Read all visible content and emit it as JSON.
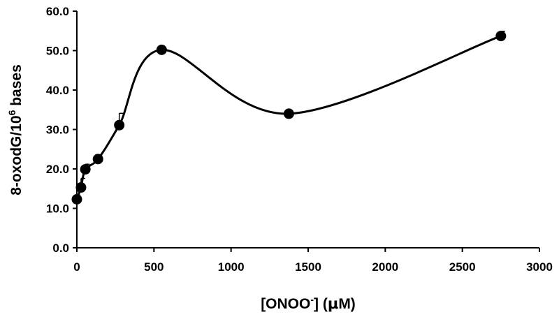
{
  "chart_data": {
    "type": "scatter",
    "title": "",
    "xlabel_parts": {
      "before": "[ONOO",
      "sup": "-",
      "after": "] (",
      "mu": "μ",
      "unit": "M)"
    },
    "ylabel_parts": {
      "before": "8-oxodG/10",
      "sup": "6",
      "after": " bases"
    },
    "xlim": [
      0,
      3000
    ],
    "ylim": [
      0,
      60
    ],
    "x_ticks": [
      0,
      500,
      1000,
      1500,
      2000,
      2500,
      3000
    ],
    "x_tick_labels": [
      "0",
      "500",
      "1000",
      "1500",
      "2000",
      "2500",
      "3000"
    ],
    "y_ticks": [
      0,
      10,
      20,
      30,
      40,
      50,
      60
    ],
    "y_tick_labels": [
      "0.0",
      "10.0",
      "20.0",
      "30.0",
      "40.0",
      "50.0",
      "60.0"
    ],
    "grid": false,
    "legend": "none",
    "series": [
      {
        "x": [
          0,
          27,
          55,
          137,
          275,
          550,
          1375,
          2750
        ],
        "y": [
          12.3,
          15.3,
          19.9,
          22.5,
          31.1,
          50.2,
          34.0,
          53.7
        ],
        "err_upper": [
          0.7,
          2.3,
          1.3,
          0.8,
          3.0,
          0.6,
          0.5,
          1.2
        ]
      }
    ],
    "color": "#000000"
  }
}
